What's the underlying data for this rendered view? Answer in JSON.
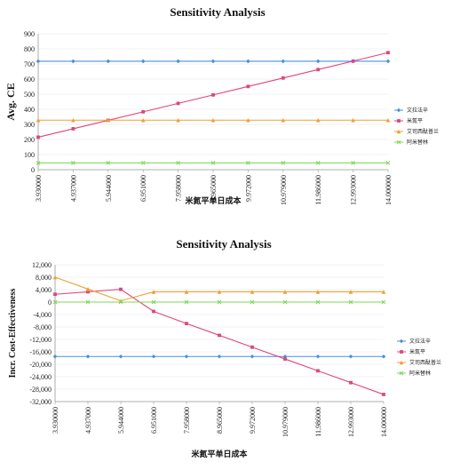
{
  "chart_data": [
    {
      "type": "line",
      "title": "Sensitivity Analysis",
      "xlabel": "米氮平单日成本",
      "ylabel": "Avg. CE",
      "ylim": [
        0,
        900
      ],
      "yticks": [
        0,
        100,
        200,
        300,
        400,
        500,
        600,
        700,
        800,
        900
      ],
      "categories": [
        "3.930000",
        "4.937000",
        "5.944000",
        "6.951000",
        "7.958000",
        "8.965000",
        "9.972000",
        "10.979000",
        "11.986000",
        "12.993000",
        "14.000000"
      ],
      "legend_position": "right",
      "series": [
        {
          "name": "文拉法辛",
          "color": "#4a90d9",
          "marker": "diamond",
          "values": [
            718,
            718,
            718,
            718,
            718,
            718,
            718,
            718,
            718,
            718,
            718
          ]
        },
        {
          "name": "米氮平",
          "color": "#e0457b",
          "marker": "square",
          "values": [
            215,
            271,
            327,
            383,
            439,
            495,
            551,
            607,
            663,
            719,
            775
          ]
        },
        {
          "name": "艾司西酞普兰",
          "color": "#f0a030",
          "marker": "triangle",
          "values": [
            328,
            328,
            328,
            328,
            328,
            328,
            328,
            328,
            328,
            328,
            328
          ]
        },
        {
          "name": "阿米替林",
          "color": "#7ed957",
          "marker": "x",
          "values": [
            45,
            45,
            45,
            45,
            45,
            45,
            45,
            45,
            45,
            45,
            45
          ]
        }
      ]
    },
    {
      "type": "line",
      "title": "Sensitivity Analysis",
      "xlabel": "米氮平单日成本",
      "ylabel": "Incr. Cost-Effectiveness",
      "ylim": [
        -32000,
        12000
      ],
      "yticks": [
        12000,
        8000,
        4000,
        0,
        -4000,
        -8000,
        -12000,
        -16000,
        -20000,
        -24000,
        -28000,
        -32000
      ],
      "ytick_labels": [
        "12,000",
        "8,000",
        "4,000",
        "0",
        "-4,000",
        "-8,000",
        "-12,000",
        "-16,000",
        "-20,000",
        "-24,000",
        "-28,000",
        "-32,000"
      ],
      "categories": [
        "3.930000",
        "4.937000",
        "5.944000",
        "6.951000",
        "7.958000",
        "8.965000",
        "9.972000",
        "10.979000",
        "11.986000",
        "12.993000",
        "14.000000"
      ],
      "legend_position": "right",
      "series": [
        {
          "name": "文拉法辛",
          "color": "#4a90d9",
          "marker": "diamond",
          "values": [
            -17500,
            -17500,
            -17500,
            -17500,
            -17500,
            -17500,
            -17500,
            -17500,
            -17500,
            -17500,
            -17500
          ]
        },
        {
          "name": "米氮平",
          "color": "#e0457b",
          "marker": "square",
          "values": [
            2500,
            3300,
            4100,
            -3000,
            -6900,
            -10700,
            -14500,
            -18300,
            -22100,
            -25900,
            -29700
          ]
        },
        {
          "name": "艾司西酞普兰",
          "color": "#f0a030",
          "marker": "triangle",
          "values": [
            8000,
            4200,
            400,
            3300,
            3300,
            3300,
            3300,
            3300,
            3300,
            3300,
            3300
          ]
        },
        {
          "name": "阿米替林",
          "color": "#7ed957",
          "marker": "x",
          "values": [
            0,
            0,
            0,
            0,
            0,
            0,
            0,
            0,
            0,
            0,
            0
          ]
        }
      ]
    }
  ]
}
